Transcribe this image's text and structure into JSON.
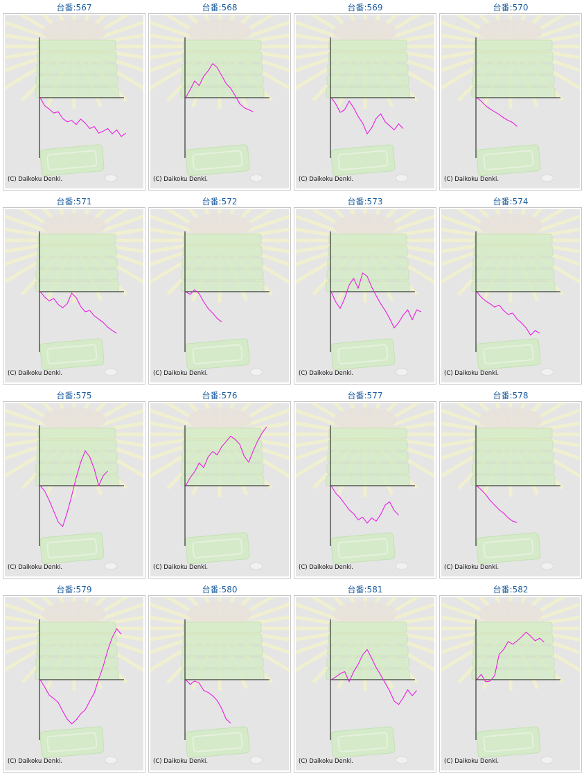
{
  "copyright": "(C) Daikoku Denki.",
  "colors": {
    "line": "#e81ee0",
    "axis": "#111111",
    "background": "#e5e5e5",
    "title": "#1f5fa0"
  },
  "icons": [
    "sunburst-background",
    "stacked-boxes-illustration",
    "tray-illustration",
    "coin-icon"
  ],
  "chart_data": [
    {
      "title": "台番:567",
      "type": "line",
      "series": [
        {
          "values": [
            0,
            -1200,
            -1700,
            -2300,
            -2100,
            -3100,
            -3600,
            -3400,
            -4000,
            -3200,
            -3800,
            -4600,
            -4300,
            -5300,
            -5000,
            -4600,
            -5400,
            -4800,
            -5800,
            -5300
          ]
        }
      ]
    },
    {
      "title": "台番:568",
      "type": "line",
      "series": [
        {
          "values": [
            0,
            1200,
            2500,
            1800,
            3200,
            4000,
            5100,
            4500,
            3300,
            2100,
            1400,
            300,
            -900,
            -1500,
            -1800,
            -2100
          ]
        }
      ]
    },
    {
      "title": "台番:569",
      "type": "line",
      "series": [
        {
          "values": [
            0,
            -900,
            -2200,
            -1800,
            -500,
            -1500,
            -2800,
            -3800,
            -5400,
            -4500,
            -3100,
            -2400,
            -3600,
            -4200,
            -4800,
            -3900,
            -4600
          ]
        }
      ]
    },
    {
      "title": "台番:570",
      "type": "line",
      "series": [
        {
          "values": [
            0,
            -500,
            -1200,
            -1700,
            -2100,
            -2500,
            -3000,
            -3400,
            -3700,
            -4300
          ]
        }
      ]
    },
    {
      "title": "台番:571",
      "type": "line",
      "series": [
        {
          "values": [
            0,
            -800,
            -1400,
            -1000,
            -1900,
            -2400,
            -1800,
            -200,
            -900,
            -2200,
            -3000,
            -2800,
            -3600,
            -4100,
            -4600,
            -5300,
            -5800,
            -6200
          ]
        }
      ]
    },
    {
      "title": "台番:572",
      "type": "line",
      "series": [
        {
          "values": [
            0,
            -400,
            300,
            -300,
            -1500,
            -2500,
            -3200,
            -4000,
            -4500
          ]
        }
      ]
    },
    {
      "title": "台番:573",
      "type": "line",
      "series": [
        {
          "values": [
            0,
            -1500,
            -2500,
            -1000,
            1000,
            2000,
            500,
            2800,
            2300,
            700,
            -600,
            -1800,
            -2800,
            -4000,
            -5400,
            -4600,
            -3500,
            -2700,
            -4200,
            -2700,
            -3000
          ]
        }
      ]
    },
    {
      "title": "台番:574",
      "type": "line",
      "series": [
        {
          "values": [
            0,
            -800,
            -1400,
            -1800,
            -2300,
            -2000,
            -2800,
            -3400,
            -3200,
            -4100,
            -4700,
            -5400,
            -6500,
            -5800,
            -6200
          ]
        }
      ]
    },
    {
      "title": "台番:575",
      "type": "line",
      "series": [
        {
          "values": [
            0,
            -800,
            -2200,
            -3800,
            -5400,
            -6100,
            -4000,
            -1500,
            1200,
            3500,
            5200,
            4300,
            2500,
            0,
            1500,
            2200
          ]
        }
      ]
    },
    {
      "title": "台番:576",
      "type": "line",
      "series": [
        {
          "values": [
            0,
            1200,
            2100,
            3400,
            2700,
            4300,
            5100,
            4600,
            5800,
            6600,
            7400,
            6900,
            6200,
            4400,
            3500,
            5200,
            6700,
            7900,
            8800
          ]
        }
      ]
    },
    {
      "title": "台番:577",
      "type": "line",
      "series": [
        {
          "values": [
            0,
            -1100,
            -1800,
            -2700,
            -3600,
            -4200,
            -5100,
            -4700,
            -5600,
            -4800,
            -5300,
            -4300,
            -2900,
            -2400,
            -3700,
            -4400
          ]
        }
      ]
    },
    {
      "title": "台番:578",
      "type": "line",
      "series": [
        {
          "values": [
            0,
            -600,
            -1300,
            -2200,
            -2900,
            -3600,
            -4100,
            -4800,
            -5300,
            -5500
          ]
        }
      ]
    },
    {
      "title": "台番:579",
      "type": "line",
      "series": [
        {
          "values": [
            0,
            -1100,
            -2300,
            -2800,
            -3400,
            -4700,
            -5900,
            -6600,
            -6000,
            -5100,
            -4500,
            -3200,
            -2000,
            100,
            2000,
            4400,
            6300,
            7600,
            6800
          ]
        }
      ]
    },
    {
      "title": "台番:580",
      "type": "line",
      "series": [
        {
          "values": [
            0,
            -700,
            -200,
            -500,
            -1600,
            -1900,
            -2400,
            -3100,
            -4300,
            -5900,
            -6500
          ]
        }
      ]
    },
    {
      "title": "台番:581",
      "type": "line",
      "series": [
        {
          "values": [
            0,
            400,
            900,
            1200,
            -300,
            1200,
            2300,
            3700,
            4500,
            3200,
            1800,
            700,
            -500,
            -1700,
            -3200,
            -3700,
            -2700,
            -1500,
            -2400,
            -1600
          ]
        }
      ]
    },
    {
      "title": "台番:582",
      "type": "line",
      "series": [
        {
          "values": [
            0,
            800,
            -300,
            -200,
            600,
            3800,
            4500,
            5700,
            5300,
            5800,
            6400,
            7100,
            6500,
            5800,
            6200,
            5600
          ]
        }
      ]
    }
  ]
}
